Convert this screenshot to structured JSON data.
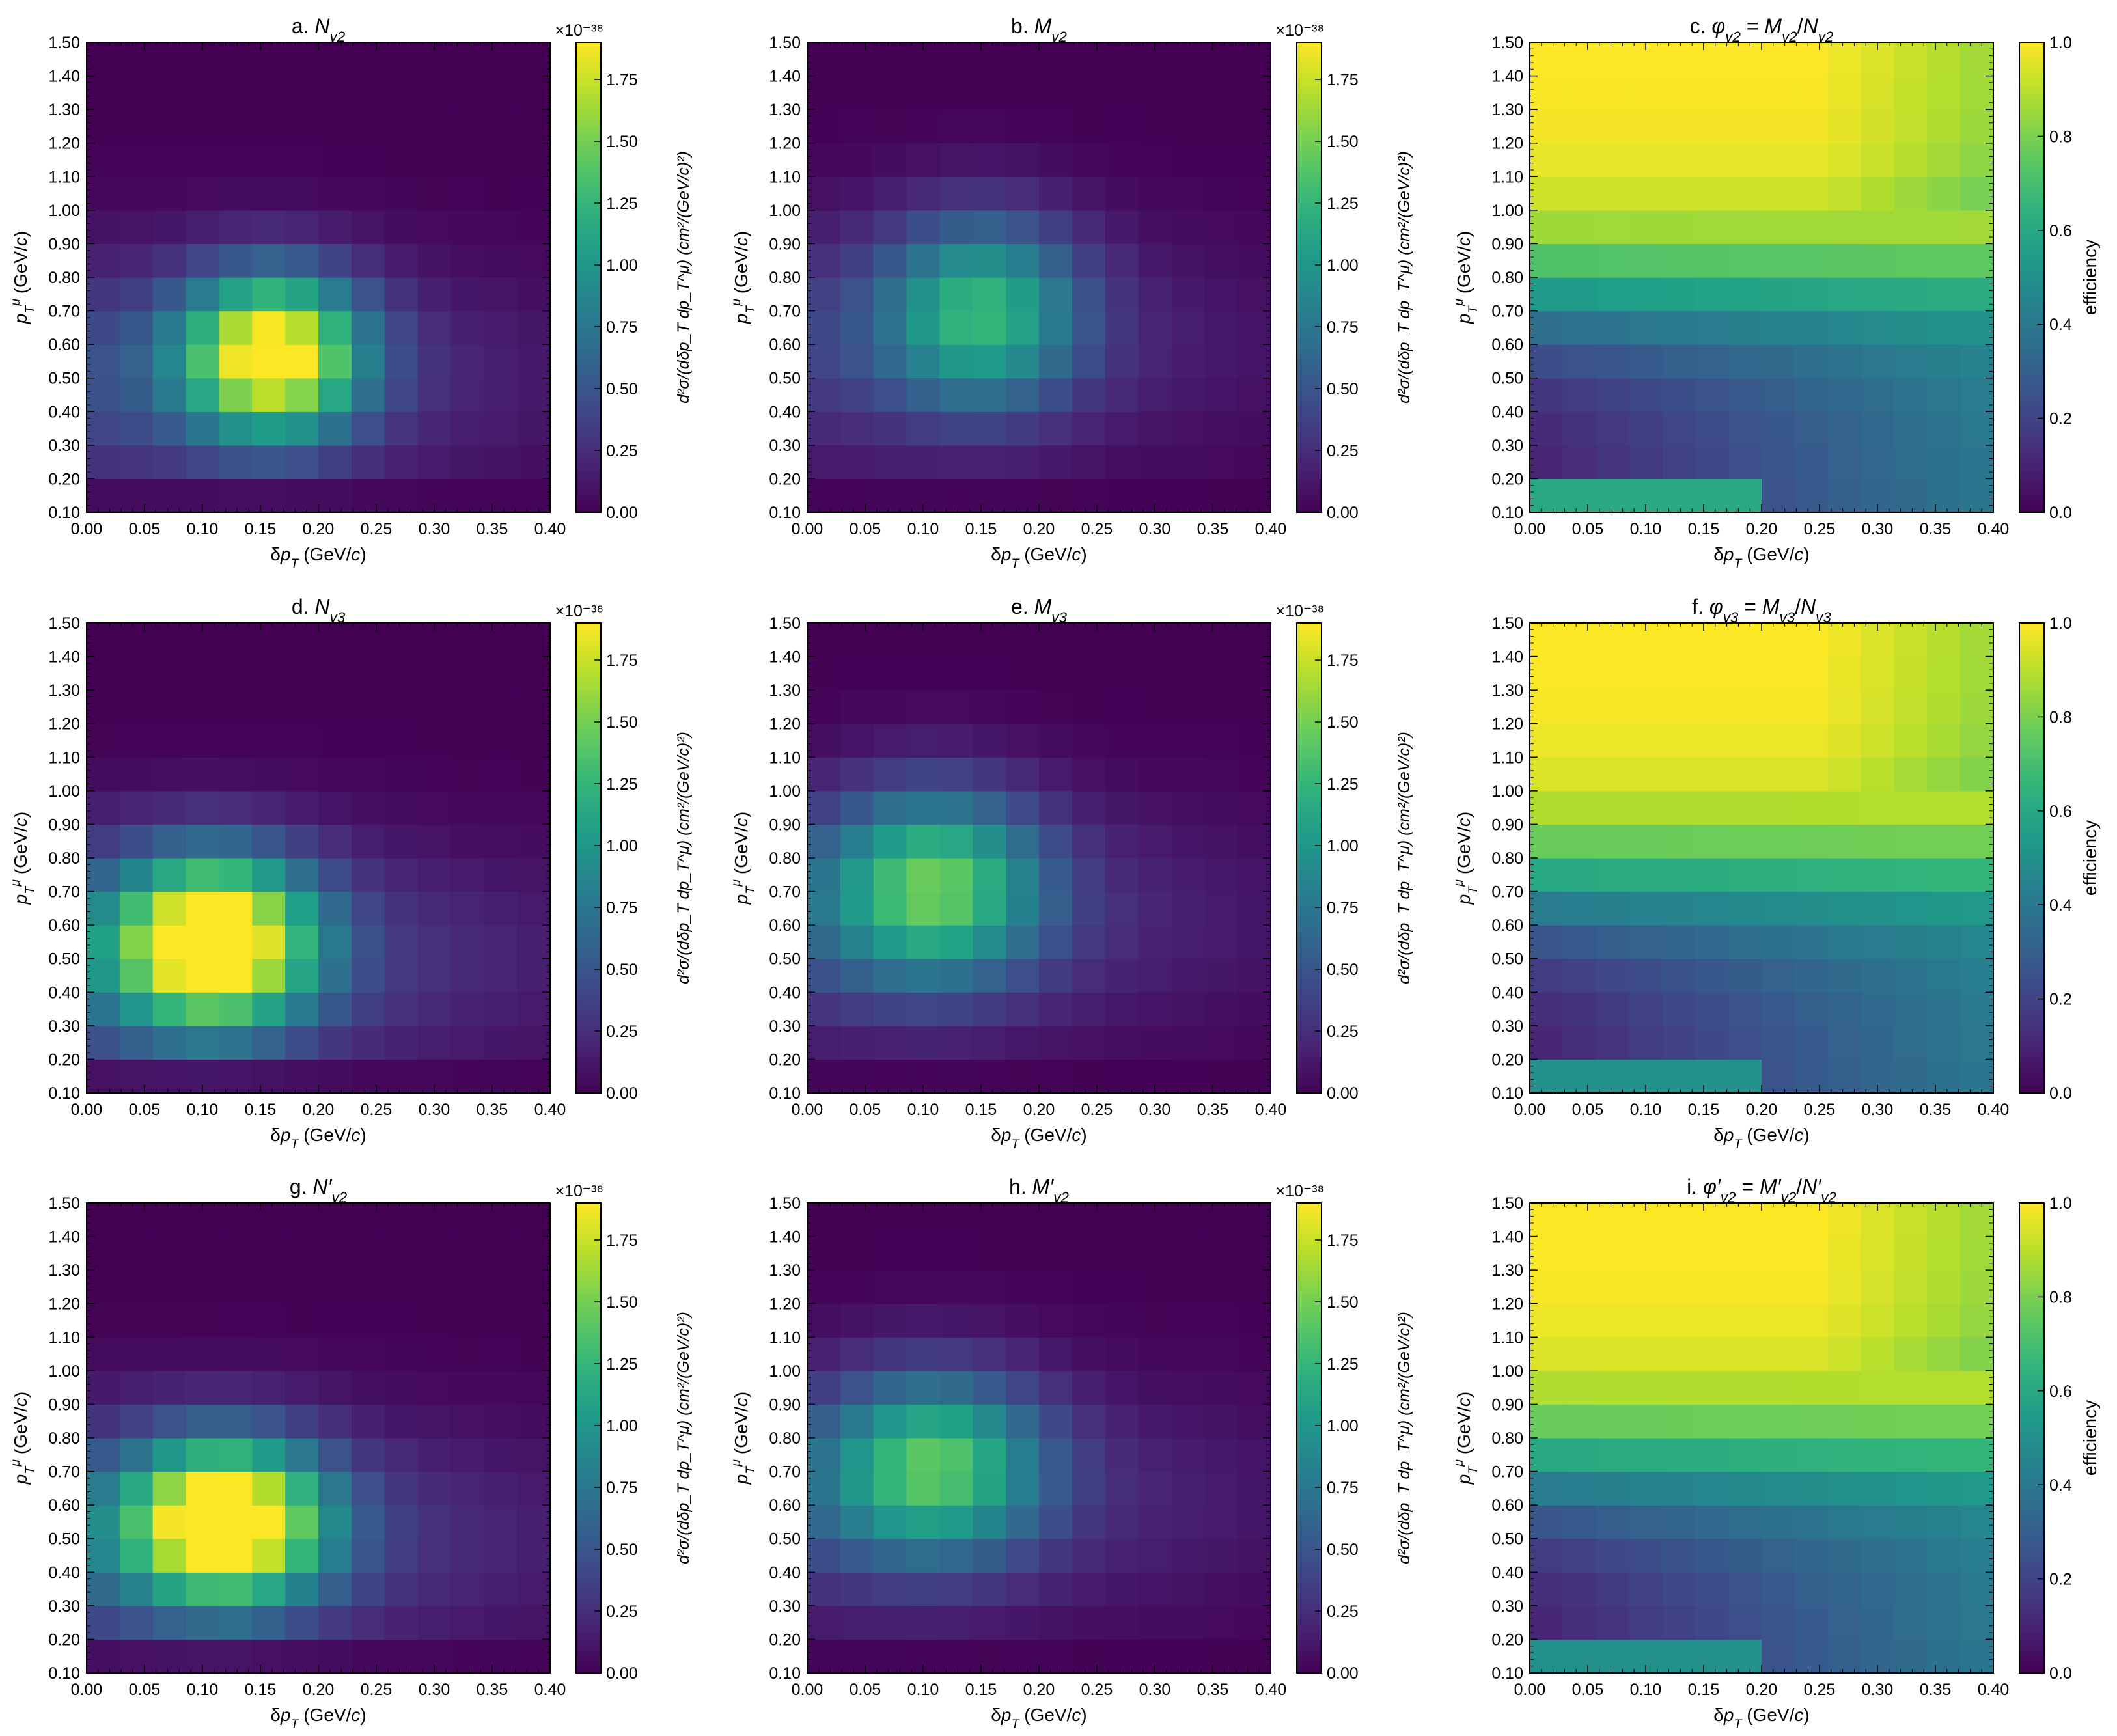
{
  "figure": {
    "xlabel": "δp_T (GeV/c)",
    "ylabel": "p_T^μ (GeV/c)",
    "xticks": [
      "0.00",
      "0.05",
      "0.10",
      "0.15",
      "0.20",
      "0.25",
      "0.30",
      "0.35",
      "0.40"
    ],
    "yticks": [
      "0.10",
      "0.20",
      "0.30",
      "0.40",
      "0.50",
      "0.60",
      "0.70",
      "0.80",
      "0.90",
      "1.00",
      "1.10",
      "1.20",
      "1.30",
      "1.40",
      "1.50"
    ],
    "xs_cbar_ticks": [
      "0.00",
      "0.25",
      "0.50",
      "0.75",
      "1.00",
      "1.25",
      "1.50",
      "1.75"
    ],
    "xs_cbar_exponent": "×10⁻³⁸",
    "xs_cbar_label": "d²σ/(dδp_T dp_T^μ) (cm²/(GeV/c)²)",
    "eff_cbar_ticks": [
      "0.0",
      "0.2",
      "0.4",
      "0.6",
      "0.8",
      "1.0"
    ],
    "eff_cbar_label": "efficiency",
    "colormap": "viridis"
  },
  "chart_data": [
    {
      "id": "a",
      "type": "heatmap",
      "title": "a. N_v2",
      "kind": "xs",
      "xlim": [
        0,
        0.4
      ],
      "ylim": [
        0.1,
        1.5
      ],
      "vrange": [
        0,
        1.9
      ],
      "x_bins": 14,
      "y_bins": 14,
      "params": {
        "A": 1.8,
        "mx": 0.16,
        "sx": 0.055,
        "my": 0.57,
        "sy": 0.17,
        "tail": 0.45,
        "tmy": 0.5,
        "tsy": 0.25
      }
    },
    {
      "id": "b",
      "type": "heatmap",
      "title": "b. M_v2",
      "kind": "xs",
      "xlim": [
        0,
        0.4
      ],
      "ylim": [
        0.1,
        1.5
      ],
      "vrange": [
        0,
        1.9
      ],
      "x_bins": 14,
      "y_bins": 14,
      "params": {
        "A": 1.05,
        "mx": 0.15,
        "sx": 0.06,
        "my": 0.7,
        "sy": 0.2,
        "tail": 0.35,
        "tmy": 0.6,
        "tsy": 0.25
      }
    },
    {
      "id": "c",
      "type": "heatmap",
      "title": "c. φ_v2 = M_v2/N_v2",
      "kind": "eff",
      "xlim": [
        0,
        0.4
      ],
      "ylim": [
        0.1,
        1.5
      ],
      "vrange": [
        0,
        1
      ],
      "x_bins": 14,
      "y_bins": 14,
      "params": {
        "lo": 0.08,
        "hi": 1.0,
        "ymid": 0.75,
        "ysc": 0.12,
        "xrise": 0.35,
        "xmid": 0.2,
        "corner": 0.6
      }
    },
    {
      "id": "d",
      "type": "heatmap",
      "title": "d. N_v3",
      "kind": "xs",
      "xlim": [
        0,
        0.4
      ],
      "ylim": [
        0.1,
        1.5
      ],
      "vrange": [
        0,
        1.9
      ],
      "x_bins": 14,
      "y_bins": 14,
      "params": {
        "A": 1.95,
        "mx": 0.11,
        "sx": 0.06,
        "my": 0.55,
        "sy": 0.18,
        "tail": 0.55,
        "tmy": 0.5,
        "tsy": 0.25
      }
    },
    {
      "id": "e",
      "type": "heatmap",
      "title": "e. M_v3",
      "kind": "xs",
      "xlim": [
        0,
        0.4
      ],
      "ylim": [
        0.1,
        1.5
      ],
      "vrange": [
        0,
        1.9
      ],
      "x_bins": 14,
      "y_bins": 14,
      "params": {
        "A": 1.2,
        "mx": 0.11,
        "sx": 0.065,
        "my": 0.72,
        "sy": 0.2,
        "tail": 0.4,
        "tmy": 0.62,
        "tsy": 0.25
      }
    },
    {
      "id": "f",
      "type": "heatmap",
      "title": "f. φ_v3 = M_v3/N_v3",
      "kind": "eff",
      "xlim": [
        0,
        0.4
      ],
      "ylim": [
        0.1,
        1.5
      ],
      "vrange": [
        0,
        1
      ],
      "x_bins": 14,
      "y_bins": 14,
      "params": {
        "lo": 0.08,
        "hi": 1.0,
        "ymid": 0.72,
        "ysc": 0.12,
        "xrise": 0.35,
        "xmid": 0.2,
        "corner": 0.5
      }
    },
    {
      "id": "g",
      "type": "heatmap",
      "title": "g. N′_v2",
      "kind": "xs",
      "xlim": [
        0,
        0.4
      ],
      "ylim": [
        0.1,
        1.5
      ],
      "vrange": [
        0,
        1.9
      ],
      "x_bins": 14,
      "y_bins": 14,
      "params": {
        "A": 1.95,
        "mx": 0.12,
        "sx": 0.06,
        "my": 0.55,
        "sy": 0.17,
        "tail": 0.55,
        "tmy": 0.5,
        "tsy": 0.25
      }
    },
    {
      "id": "h",
      "type": "heatmap",
      "title": "h. M′_v2",
      "kind": "xs",
      "xlim": [
        0,
        0.4
      ],
      "ylim": [
        0.1,
        1.5
      ],
      "vrange": [
        0,
        1.9
      ],
      "x_bins": 14,
      "y_bins": 14,
      "params": {
        "A": 1.15,
        "mx": 0.11,
        "sx": 0.065,
        "my": 0.72,
        "sy": 0.19,
        "tail": 0.4,
        "tmy": 0.62,
        "tsy": 0.25
      }
    },
    {
      "id": "i",
      "type": "heatmap",
      "title": "i. φ′_v2 = M′_v2/N′_v2",
      "kind": "eff",
      "xlim": [
        0,
        0.4
      ],
      "ylim": [
        0.1,
        1.5
      ],
      "vrange": [
        0,
        1
      ],
      "x_bins": 14,
      "y_bins": 14,
      "params": {
        "lo": 0.08,
        "hi": 1.0,
        "ymid": 0.72,
        "ysc": 0.12,
        "xrise": 0.35,
        "xmid": 0.2,
        "corner": 0.5
      }
    }
  ]
}
